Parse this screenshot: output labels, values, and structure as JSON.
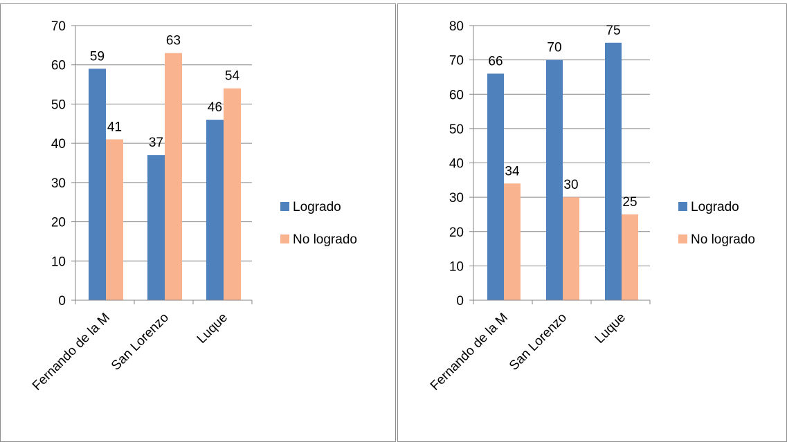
{
  "colors": {
    "series_0": "#4f81bd",
    "series_1": "#f9b48f",
    "axis": "#868686",
    "grid": "#868686",
    "frame": "#8c8c8c"
  },
  "chart_data": [
    {
      "type": "bar",
      "categories": [
        "Fernando de la M",
        "San Lorenzo",
        "Luque"
      ],
      "series": [
        {
          "name": "Logrado",
          "values": [
            59,
            37,
            46
          ]
        },
        {
          "name": "No logrado",
          "values": [
            41,
            63,
            54
          ]
        }
      ],
      "ylim": [
        0,
        70
      ],
      "yticks": [
        0,
        10,
        20,
        30,
        40,
        50,
        60,
        70
      ],
      "grid": true,
      "legend": "right",
      "data_labels": true
    },
    {
      "type": "bar",
      "categories": [
        "Fernando de la M",
        "San Lorenzo",
        "Luque"
      ],
      "series": [
        {
          "name": "Logrado",
          "values": [
            66,
            70,
            75
          ]
        },
        {
          "name": "No logrado",
          "values": [
            34,
            30,
            25
          ]
        }
      ],
      "ylim": [
        0,
        80
      ],
      "yticks": [
        0,
        10,
        20,
        30,
        40,
        50,
        60,
        70,
        80
      ],
      "grid": true,
      "legend": "right",
      "data_labels": true
    }
  ]
}
